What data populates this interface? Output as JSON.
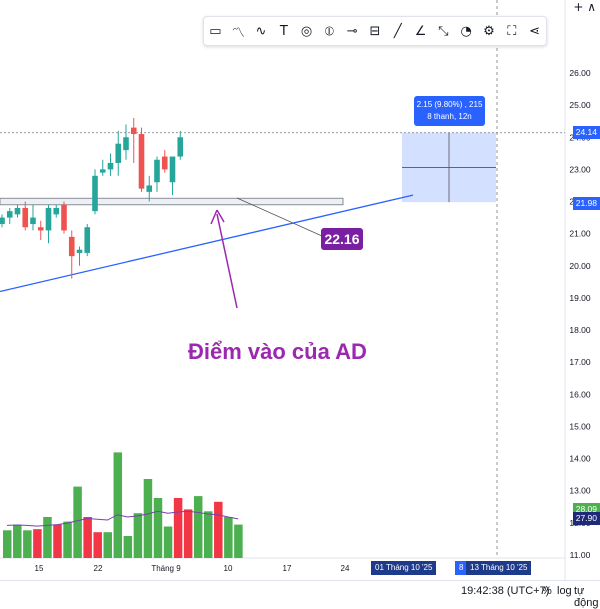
{
  "toolbar": {
    "icons": [
      "select-rect-icon",
      "path-icon",
      "brush-icon",
      "text-icon",
      "target-icon",
      "vertical-line-icon",
      "horizontal-line-icon",
      "paint-icon",
      "line-draw-icon",
      "angle-icon",
      "eyedropper-icon",
      "measure-icon",
      "settings-icon",
      "fullscreen-icon",
      "share-icon"
    ]
  },
  "top_right": "+ ∧",
  "chart_data": {
    "type": "candlestick",
    "y_ticks": [
      "26.00",
      "25.00",
      "24.00",
      "23.00",
      "22.00",
      "21.00",
      "20.00",
      "19.00",
      "18.00",
      "17.00",
      "16.00",
      "15.00",
      "14.00",
      "13.00",
      "12.00",
      "11.00"
    ],
    "x_ticks": [
      "15",
      "22",
      "Tháng 9",
      "10",
      "17",
      "24"
    ],
    "candles": [
      {
        "o": 21.3,
        "h": 21.6,
        "l": 21.2,
        "c": 21.5
      },
      {
        "o": 21.5,
        "h": 21.8,
        "l": 21.3,
        "c": 21.7
      },
      {
        "o": 21.6,
        "h": 21.9,
        "l": 21.5,
        "c": 21.8
      },
      {
        "o": 21.8,
        "h": 22.0,
        "l": 21.1,
        "c": 21.2
      },
      {
        "o": 21.3,
        "h": 21.9,
        "l": 21.1,
        "c": 21.5
      },
      {
        "o": 21.2,
        "h": 21.4,
        "l": 20.8,
        "c": 21.1
      },
      {
        "o": 21.1,
        "h": 21.9,
        "l": 20.7,
        "c": 21.8
      },
      {
        "o": 21.6,
        "h": 21.9,
        "l": 21.5,
        "c": 21.8
      },
      {
        "o": 21.9,
        "h": 22.0,
        "l": 21.0,
        "c": 21.1
      },
      {
        "o": 20.9,
        "h": 21.1,
        "l": 19.6,
        "c": 20.3
      },
      {
        "o": 20.4,
        "h": 20.6,
        "l": 20.0,
        "c": 20.5
      },
      {
        "o": 20.4,
        "h": 21.3,
        "l": 20.3,
        "c": 21.2
      },
      {
        "o": 21.7,
        "h": 23.0,
        "l": 21.6,
        "c": 22.8
      },
      {
        "o": 22.9,
        "h": 23.3,
        "l": 22.8,
        "c": 23.0
      },
      {
        "o": 23.0,
        "h": 23.5,
        "l": 22.8,
        "c": 23.2
      },
      {
        "o": 23.2,
        "h": 24.2,
        "l": 22.8,
        "c": 23.8
      },
      {
        "o": 23.6,
        "h": 24.4,
        "l": 23.3,
        "c": 24.0
      },
      {
        "o": 24.3,
        "h": 24.6,
        "l": 23.2,
        "c": 24.1
      },
      {
        "o": 24.1,
        "h": 24.3,
        "l": 22.3,
        "c": 22.4
      },
      {
        "o": 22.3,
        "h": 22.8,
        "l": 22.0,
        "c": 22.5
      },
      {
        "o": 22.6,
        "h": 23.4,
        "l": 22.3,
        "c": 23.3
      },
      {
        "o": 23.4,
        "h": 23.6,
        "l": 22.9,
        "c": 23.0
      },
      {
        "o": 22.6,
        "h": 23.4,
        "l": 22.2,
        "c": 23.4
      },
      {
        "o": 23.4,
        "h": 24.2,
        "l": 23.3,
        "c": 24.0
      }
    ],
    "volumes": [
      26.5,
      28.0,
      26.5,
      26.8,
      30.0,
      28.0,
      28.8,
      38.0,
      30.0,
      26.0,
      26.0,
      47.0,
      25.0,
      31.0,
      40.0,
      35.0,
      27.5,
      35.0,
      32.0,
      35.5,
      31.5,
      34.0,
      30.0,
      28.0
    ],
    "volume_ma": [
      27.8,
      27.9,
      27.8,
      27.6,
      27.8,
      28.0,
      28.4,
      29.0,
      29.6,
      29.4,
      29.2,
      30.6,
      30.0,
      30.3,
      30.8,
      31.5,
      31.0,
      31.3,
      31.5,
      31.2,
      30.8,
      30.6,
      30.0,
      29.5
    ],
    "support_zone": [
      21.9,
      22.1
    ],
    "trendline": [
      [
        19.2,
        0
      ],
      [
        22.2,
        28.5
      ]
    ],
    "measure": {
      "from": 21.98,
      "to": 24.14
    },
    "current_price_line": 24.14
  },
  "annotations": {
    "entry_text": "Điểm vào của AD",
    "price_label": "22.16",
    "measure_line1": "2.15 (9.80%) , 215",
    "measure_line2": "8 thanh, 12n"
  },
  "axis_badges": {
    "upper": "24.14",
    "lower": "21.98",
    "vol1": "28.09",
    "vol2": "27.90"
  },
  "date_badges": {
    "start": "01 Tháng 10 '25",
    "mid": "8",
    "end": "13 Tháng 10 '25"
  },
  "bottom": {
    "time": "19:42:38 (UTC+7)",
    "percent": "%",
    "log": "log",
    "auto": "tự động"
  },
  "colors": {
    "up": "#26a69a",
    "down": "#ef5350",
    "vol_up": "#4caf50",
    "vol_down": "#f23645",
    "trend": "#2962ff",
    "purple": "#9c27b0",
    "measure": "#2962ff"
  }
}
